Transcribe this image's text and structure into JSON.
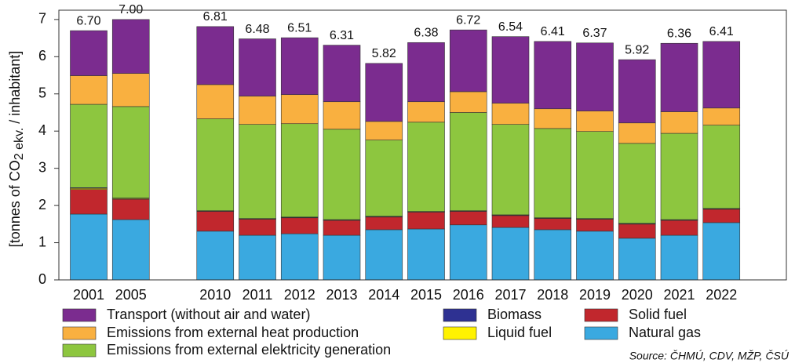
{
  "chart_data": {
    "type": "stacked_bar",
    "y_label": "[tonnes of CO",
    "y_label_sub": "2 ekv.",
    "y_label_end": " / inhabitant]",
    "source": "Source: ČHMÚ, CDV, MŽP, ČSÚ",
    "categories": [
      "2001",
      "2005",
      null,
      "2010",
      "2011",
      "2012",
      "2013",
      "2014",
      "2015",
      "2016",
      "2017",
      "2018",
      "2019",
      "2020",
      "2021",
      "2022"
    ],
    "series": [
      {
        "name": "Natural gas",
        "color": "#3aa9e0",
        "values": [
          1.77,
          1.62,
          null,
          1.31,
          1.2,
          1.24,
          1.2,
          1.35,
          1.37,
          1.48,
          1.41,
          1.35,
          1.31,
          1.12,
          1.2,
          1.54
        ]
      },
      {
        "name": "Solid fuel",
        "color": "#c1272d",
        "values": [
          0.66,
          0.55,
          null,
          0.53,
          0.43,
          0.43,
          0.4,
          0.34,
          0.45,
          0.36,
          0.32,
          0.3,
          0.32,
          0.38,
          0.4,
          0.36
        ]
      },
      {
        "name": "Liquid fuel",
        "color": "#fff200",
        "values": [
          0.03,
          0.02,
          null,
          0.01,
          0.01,
          0.01,
          0.01,
          0.01,
          0.01,
          0.01,
          0.01,
          0.01,
          0.01,
          0.01,
          0.01,
          0.01
        ]
      },
      {
        "name": "Biomass",
        "color": "#2e3192",
        "values": [
          0.02,
          0.01,
          null,
          0.01,
          0.01,
          0.01,
          0.01,
          0.01,
          0.01,
          0.01,
          0.01,
          0.01,
          0.01,
          0.01,
          0.01,
          0.01
        ]
      },
      {
        "name": "Emissions from external elektricity generation",
        "color": "#8dc63f",
        "values": [
          2.24,
          2.46,
          null,
          2.47,
          2.53,
          2.51,
          2.43,
          2.05,
          2.4,
          2.64,
          2.43,
          2.4,
          2.34,
          2.15,
          2.32,
          2.24
        ]
      },
      {
        "name": "Emissions from external heat production",
        "color": "#f9b040",
        "values": [
          0.77,
          0.89,
          null,
          0.92,
          0.76,
          0.78,
          0.74,
          0.5,
          0.55,
          0.56,
          0.57,
          0.53,
          0.55,
          0.55,
          0.58,
          0.46
        ]
      },
      {
        "name": "Transport (without air and water)",
        "color": "#7b2c8f",
        "values": [
          1.21,
          1.45,
          null,
          1.56,
          1.54,
          1.53,
          1.52,
          1.56,
          1.59,
          1.66,
          1.79,
          1.81,
          1.83,
          1.7,
          1.84,
          1.79
        ]
      }
    ],
    "totals": {
      "values": [
        6.7,
        7,
        null,
        6.81,
        6.48,
        6.51,
        6.31,
        5.82,
        6.38,
        6.72,
        6.54,
        6.41,
        6.37,
        5.92,
        6.36,
        6.41
      ],
      "value_labels": [
        "6.70",
        "7.00",
        null,
        "6.81",
        "6.48",
        "6.51",
        "6.31",
        "5.82",
        "6.38",
        "6.72",
        "6.54",
        "6.41",
        "6.37",
        "5.92",
        "6.36",
        "6.41"
      ]
    },
    "ylim": [
      0,
      7.25
    ],
    "yticks": [
      0,
      1,
      2,
      3,
      4,
      5,
      6,
      7
    ],
    "grid": false
  }
}
